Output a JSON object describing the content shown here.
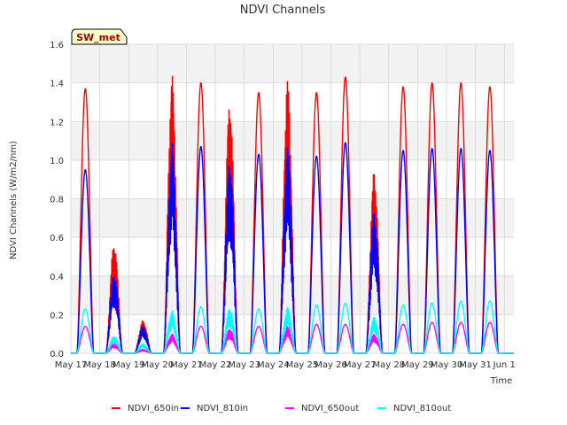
{
  "chart_data": {
    "type": "line",
    "title": "NDVI Channels",
    "xlabel": "Time",
    "ylabel": "NDVI Channels (W/m2/nm)",
    "ylim": [
      0.0,
      1.6
    ],
    "yticks": [
      0.0,
      0.2,
      0.4,
      0.6,
      0.8,
      1.0,
      1.2,
      1.4,
      1.6
    ],
    "ytick_labels": [
      "0.0",
      "0.2",
      "0.4",
      "0.6",
      "0.8",
      "1.0",
      "1.2",
      "1.4",
      "1.6"
    ],
    "xlim": [
      0,
      15.33
    ],
    "x_unit": "days since May 17",
    "xticks": [
      0,
      1,
      2,
      3,
      4,
      5,
      6,
      7,
      8,
      9,
      10,
      11,
      12,
      13,
      14,
      15
    ],
    "xtick_labels": [
      "May 17",
      "May 18",
      "May 19",
      "May 20",
      "May 21",
      "May 22",
      "May 23",
      "May 24",
      "May 25",
      "May 26",
      "May 27",
      "May 28",
      "May 29",
      "May 30",
      "May 31",
      "Jun 1"
    ],
    "grid": true,
    "legend_position": "bottom",
    "annotation": "SW_met",
    "series": [
      {
        "name": "NDVI_650in",
        "color": "#ff0000",
        "daily_peaks": [
          1.37,
          0.58,
          0.17,
          1.44,
          1.4,
          1.33,
          1.35,
          1.43,
          1.35,
          1.43,
          0.95,
          1.38,
          1.4,
          1.4,
          1.38
        ]
      },
      {
        "name": "NDVI_810in",
        "color": "#0000ff",
        "daily_peaks": [
          0.95,
          0.42,
          0.14,
          1.09,
          1.07,
          1.02,
          1.03,
          1.08,
          1.02,
          1.09,
          0.74,
          1.05,
          1.06,
          1.06,
          1.05
        ]
      },
      {
        "name": "NDVI_650out",
        "color": "#ff00ff",
        "daily_peaks": [
          0.14,
          0.05,
          0.02,
          0.1,
          0.14,
          0.13,
          0.14,
          0.14,
          0.15,
          0.15,
          0.1,
          0.15,
          0.16,
          0.16,
          0.16
        ]
      },
      {
        "name": "NDVI_810out",
        "color": "#00ffff",
        "daily_peaks": [
          0.23,
          0.09,
          0.05,
          0.22,
          0.24,
          0.24,
          0.23,
          0.24,
          0.25,
          0.26,
          0.19,
          0.25,
          0.26,
          0.27,
          0.27
        ]
      }
    ]
  }
}
